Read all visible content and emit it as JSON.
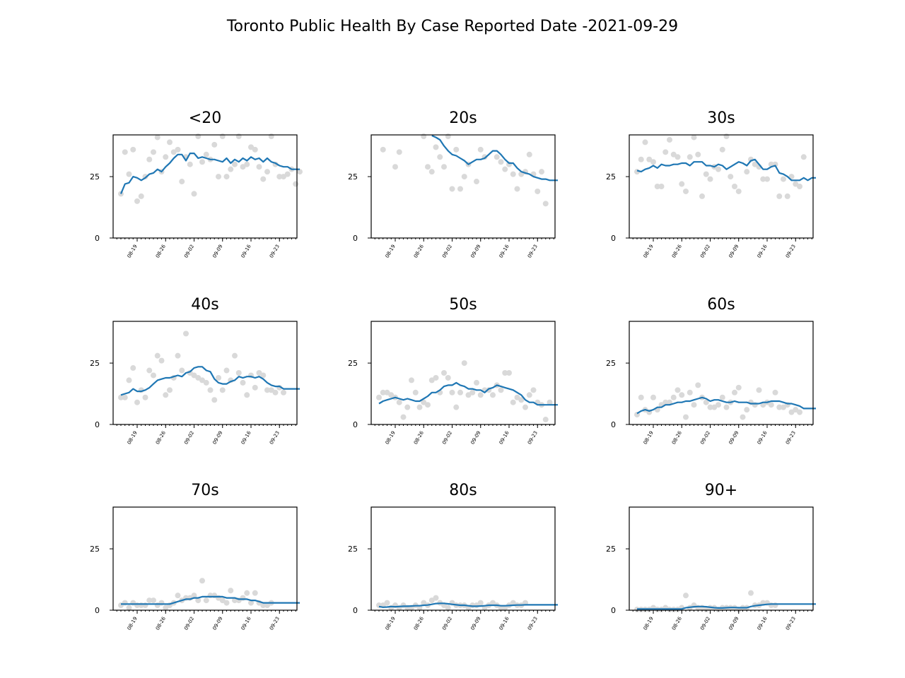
{
  "title": "Toronto Public Health By Case Reported Date -2021-09-29",
  "chart_data": {
    "type": "scatter",
    "layout": "3x3 small multiples",
    "x_start": "2021-08-15",
    "num_days": 45,
    "xtick_labels": [
      "08-19",
      "08-26",
      "09-02",
      "09-09",
      "09-16",
      "09-23"
    ],
    "xtick_dates": [
      "2021-08-19",
      "2021-08-26",
      "2021-09-02",
      "2021-09-09",
      "2021-09-16",
      "2021-09-23"
    ],
    "yticks": [
      0,
      25
    ],
    "ylim": [
      0,
      42
    ],
    "colors": {
      "points": "#d9d9d9",
      "line": "#1f77b4"
    },
    "panels": [
      {
        "title": "<20",
        "points": [
          18,
          35,
          26,
          36,
          15,
          17,
          25,
          32,
          35,
          41,
          27,
          33,
          39,
          35,
          36,
          23,
          33,
          30,
          18,
          42,
          31,
          34,
          32,
          38,
          25,
          42,
          25,
          28,
          30,
          42,
          29,
          30,
          37,
          36,
          29,
          24,
          27,
          42,
          30,
          25,
          25,
          26,
          28,
          22,
          27
        ],
        "avg": [
          18,
          22,
          22.5,
          25,
          24.5,
          23.5,
          24.5,
          26,
          26.5,
          28,
          27,
          29,
          30.5,
          32.5,
          34,
          34,
          31.5,
          34.5,
          34.5,
          32.5,
          33,
          32.5,
          32,
          32,
          31.5,
          31,
          32.5,
          30.5,
          32,
          31,
          32.5,
          31.5,
          33,
          32,
          32.5,
          31,
          32.5,
          31,
          30.5,
          29.5,
          29,
          29,
          28,
          28,
          28
        ]
      },
      {
        "title": "20s",
        "points": [
          null,
          36,
          null,
          null,
          29,
          35,
          null,
          null,
          null,
          null,
          null,
          42,
          29,
          27,
          37,
          33,
          29,
          42,
          20,
          36,
          20,
          25,
          30,
          null,
          23,
          36,
          33,
          null,
          null,
          33,
          31,
          28,
          30,
          26,
          20,
          26,
          27,
          34,
          26,
          19,
          27,
          14,
          null,
          null,
          null
        ],
        "avg": [
          null,
          null,
          null,
          null,
          null,
          null,
          null,
          null,
          null,
          null,
          null,
          null,
          null,
          42,
          41,
          40,
          37.5,
          35.5,
          34,
          33.5,
          32.5,
          31.5,
          30,
          31,
          32,
          32,
          32.5,
          34,
          35.5,
          35.5,
          34,
          32,
          30.5,
          30.5,
          28.5,
          27,
          26.5,
          26,
          25,
          24.5,
          24,
          24,
          23.5,
          23.5,
          23.5
        ]
      },
      {
        "title": "30s",
        "points": [
          27,
          32,
          39,
          32,
          31,
          21,
          21,
          35,
          40,
          34,
          33,
          22,
          19,
          33,
          41,
          34,
          17,
          26,
          24,
          29,
          28,
          36,
          43,
          25,
          21,
          19,
          null,
          27,
          32,
          30,
          29,
          24,
          24,
          30,
          30,
          17,
          24,
          17,
          25,
          22,
          21,
          33,
          null,
          null,
          null
        ],
        "avg": [
          27.5,
          27,
          28,
          28.5,
          29.5,
          28.5,
          30,
          29.5,
          29.5,
          30,
          30,
          30.5,
          30.5,
          29.5,
          31,
          31,
          31,
          29.5,
          29.5,
          29,
          30,
          29.5,
          28,
          29,
          30,
          31,
          30.5,
          29.5,
          31.5,
          32,
          30,
          28,
          28,
          29,
          29.5,
          26.5,
          26,
          25,
          23.5,
          23.5,
          23.5,
          24.5,
          23.5,
          24.5,
          24.5
        ]
      },
      {
        "title": "40s",
        "points": [
          11,
          11,
          18,
          23,
          9,
          14,
          11,
          22,
          20,
          28,
          26,
          12,
          14,
          19,
          28,
          22,
          37,
          21,
          20,
          19,
          18,
          17,
          14,
          10,
          19,
          14,
          22,
          18,
          28,
          21,
          17,
          12,
          20,
          15,
          21,
          20,
          14,
          14,
          13,
          15,
          13,
          null,
          null,
          null,
          null
        ],
        "avg": [
          12,
          12.5,
          13,
          14.5,
          13.5,
          13.5,
          14,
          15,
          16.5,
          18,
          18.5,
          19,
          19,
          19.5,
          20,
          19.5,
          21,
          21.5,
          23,
          23.5,
          23.5,
          22,
          21.5,
          18.5,
          17,
          16.5,
          16.5,
          17.5,
          18,
          19.5,
          19,
          19.5,
          19.5,
          19,
          19.5,
          18.5,
          17,
          16,
          15.5,
          15.5,
          14.5,
          14.5,
          14.5,
          14.5,
          14.5
        ]
      },
      {
        "title": "50s",
        "points": [
          11,
          13,
          13,
          12,
          11,
          9,
          3,
          7,
          18,
          13,
          7,
          9,
          8,
          18,
          19,
          13,
          21,
          19,
          13,
          7,
          13,
          25,
          12,
          13,
          17,
          12,
          14,
          14,
          12,
          16,
          14,
          21,
          21,
          9,
          11,
          10,
          7,
          12,
          14,
          9,
          8,
          2,
          9,
          null,
          null
        ],
        "avg": [
          8.5,
          9.5,
          10,
          10.5,
          11,
          10.5,
          10,
          10.5,
          10,
          9.5,
          9.5,
          10.5,
          11.5,
          13,
          13,
          14,
          15.5,
          16,
          16,
          17,
          16,
          15.5,
          14.5,
          14.5,
          14,
          14,
          13,
          14.5,
          15,
          16,
          15.5,
          15,
          14.5,
          14,
          13,
          12,
          10,
          9,
          9,
          8,
          8,
          8,
          8,
          8,
          8
        ]
      },
      {
        "title": "60s",
        "points": [
          4,
          11,
          6,
          5,
          11,
          6,
          8,
          9,
          9,
          11,
          14,
          12,
          3,
          13,
          8,
          16,
          11,
          9,
          7,
          7,
          8,
          11,
          7,
          9,
          13,
          15,
          3,
          6,
          9,
          8,
          14,
          8,
          9,
          8,
          13,
          7,
          7,
          8,
          5,
          6,
          5,
          null,
          null,
          null,
          null
        ],
        "avg": [
          4.5,
          5.5,
          6,
          5.5,
          6,
          7,
          7,
          8,
          8,
          8.5,
          9,
          9,
          9.5,
          9.5,
          10,
          10.5,
          11,
          10.5,
          9.5,
          10,
          10,
          9.5,
          9,
          9,
          9.5,
          9,
          9,
          9,
          8.5,
          8.5,
          8.5,
          9,
          9,
          9.5,
          9.5,
          9.5,
          9,
          8.5,
          8.5,
          8,
          7.5,
          6.5,
          6.5,
          6.5,
          6.5
        ]
      },
      {
        "title": "70s",
        "points": [
          2,
          3,
          1,
          3,
          2,
          2,
          2,
          4,
          4,
          2,
          3,
          1,
          2,
          3,
          6,
          4,
          5,
          5,
          6,
          4,
          12,
          4,
          6,
          6,
          5,
          4,
          3,
          8,
          4,
          4,
          5,
          7,
          3,
          7,
          3,
          2,
          2,
          3,
          null,
          null,
          null,
          null,
          null,
          null,
          null
        ],
        "avg": [
          2.5,
          2.5,
          2.5,
          2.5,
          2.5,
          2.5,
          2.5,
          2.5,
          2.5,
          2.5,
          2.5,
          2.5,
          2.5,
          3,
          3.5,
          4,
          4.5,
          4.5,
          5,
          5,
          5.5,
          5.5,
          5.5,
          5.5,
          5.5,
          5.5,
          5,
          5,
          5,
          4.5,
          4.5,
          4.5,
          4,
          4,
          3.5,
          3,
          3,
          3,
          3,
          3,
          3,
          3,
          3,
          3,
          3
        ]
      },
      {
        "title": "80s",
        "points": [
          2,
          2,
          3,
          1,
          2,
          1,
          2,
          1,
          1,
          2,
          1,
          3,
          2,
          4,
          5,
          3,
          2,
          1,
          3,
          2,
          2,
          2,
          1,
          2,
          2,
          3,
          1,
          2,
          3,
          2,
          1,
          1,
          2,
          3,
          2,
          2,
          3,
          null,
          null,
          null,
          null,
          null,
          null,
          null,
          null
        ],
        "avg": [
          1.5,
          1.2,
          1.3,
          1.5,
          1.4,
          1.5,
          1.6,
          1.6,
          1.7,
          1.8,
          1.8,
          2,
          2.1,
          2.4,
          2.7,
          2.8,
          2.8,
          2.6,
          2.4,
          2.2,
          2,
          2,
          1.8,
          1.6,
          1.6,
          1.7,
          1.8,
          2,
          2,
          2,
          1.8,
          1.8,
          1.9,
          2,
          2.1,
          2.1,
          2.2,
          2.2,
          2.2,
          2.2,
          2.2,
          2.2,
          2.2,
          2.2,
          2.2
        ]
      },
      {
        "title": "90+",
        "points": [
          0,
          0,
          0,
          0,
          1,
          0,
          0,
          1,
          0,
          0,
          0,
          1,
          6,
          1,
          2,
          1,
          1,
          0,
          1,
          1,
          0,
          1,
          1,
          1,
          1,
          0,
          1,
          1,
          7,
          2,
          2,
          3,
          3,
          2,
          2,
          null,
          null,
          null,
          null,
          null,
          null,
          null,
          null,
          null,
          null
        ],
        "avg": [
          0.5,
          0.5,
          0.5,
          0.5,
          0.5,
          0.5,
          0.5,
          0.5,
          0.5,
          0.5,
          0.5,
          0.5,
          1,
          1.2,
          1.4,
          1.5,
          1.5,
          1.4,
          1.2,
          1,
          0.9,
          0.9,
          1,
          1.1,
          1.1,
          1,
          1,
          1,
          1.5,
          1.8,
          2,
          2.2,
          2.4,
          2.5,
          2.5,
          2.5,
          2.5,
          2.5,
          2.5,
          2.5,
          2.5,
          2.5,
          2.5,
          2.5,
          2.5
        ]
      }
    ]
  }
}
